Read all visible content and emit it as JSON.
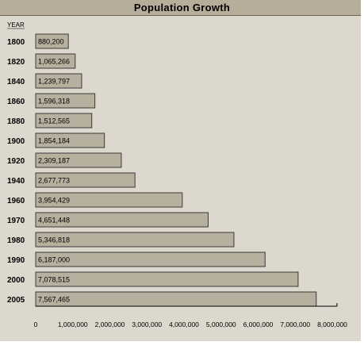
{
  "chart_data": {
    "type": "bar",
    "orientation": "horizontal",
    "title": "Population  Growth",
    "ylabel": "YEAR",
    "xlabel": "",
    "categories": [
      "1800",
      "1820",
      "1840",
      "1860",
      "1880",
      "1900",
      "1920",
      "1940",
      "1960",
      "1970",
      "1980",
      "1990",
      "2000",
      "2005"
    ],
    "values": [
      880200,
      1065266,
      1239797,
      1596318,
      1512565,
      1854184,
      2309187,
      2677773,
      3954429,
      4651448,
      5346818,
      6187000,
      7078515,
      7567465
    ],
    "value_labels": [
      "880,200",
      "1,065,266",
      "1,239,797",
      "1,596,318",
      "1,512,565",
      "1,854,184",
      "2,309,187",
      "2,677,773",
      "3,954,429",
      "4,651,448",
      "5,346,818",
      "6,187,000",
      "7,078,515",
      "7,567,465"
    ],
    "xlim": [
      0,
      8000000
    ],
    "xticks": [
      "0",
      "1,000,000",
      "2,000,000",
      "3,000,000",
      "4,000,000",
      "5,000,000",
      "6,000,000",
      "7,000,000",
      "8,000,000"
    ],
    "grid": false,
    "legend": "none",
    "bar_color": "#b8b09e",
    "bar_border": "#3a3a3a",
    "background": "#ddd8ce"
  }
}
